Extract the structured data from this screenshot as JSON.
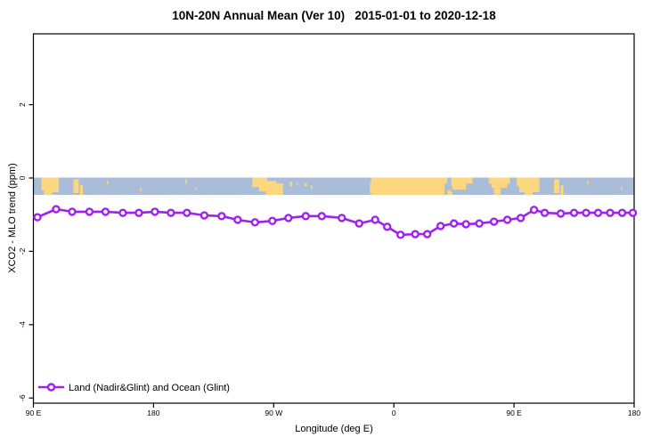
{
  "chart_data": {
    "type": "line",
    "title": "10N-20N Annual Mean (Ver 10)   2015-01-01 to 2020-12-18",
    "xlabel": "Longitude (deg E)",
    "ylabel": "XCO2 - MLO trend (ppm)",
    "grid": false,
    "x_axis": {
      "range_deg": [
        -270,
        180
      ],
      "tick_lons": [
        -270,
        -180,
        -90,
        0,
        90,
        180
      ],
      "tick_labels": [
        "90 E",
        "180",
        "90 W",
        "0",
        "90 E",
        "180"
      ]
    },
    "y_axis": {
      "range": [
        -6.1,
        3.9
      ],
      "tick_values": [
        2,
        0,
        -2,
        -4,
        -6
      ],
      "tick_labels": [
        "2",
        "0",
        "-2",
        "-4",
        "-6"
      ]
    },
    "series": [
      {
        "name": "Land (Nadir&Glint) and Ocean (Glint)",
        "color": "#A020F0",
        "marker": "open-circle",
        "points": [
          [
            -267,
            -1.07
          ],
          [
            -253,
            -0.85
          ],
          [
            -241,
            -0.92
          ],
          [
            -228,
            -0.92
          ],
          [
            -216,
            -0.92
          ],
          [
            -203,
            -0.95
          ],
          [
            -191,
            -0.95
          ],
          [
            -179,
            -0.92
          ],
          [
            -167,
            -0.95
          ],
          [
            -155,
            -0.95
          ],
          [
            -142,
            -1.02
          ],
          [
            -129,
            -1.04
          ],
          [
            -117,
            -1.14
          ],
          [
            -104,
            -1.21
          ],
          [
            -91,
            -1.17
          ],
          [
            -79,
            -1.09
          ],
          [
            -66,
            -1.04
          ],
          [
            -54,
            -1.04
          ],
          [
            -39,
            -1.09
          ],
          [
            -26,
            -1.24
          ],
          [
            -14,
            -1.14
          ],
          [
            -5,
            -1.33
          ],
          [
            5,
            -1.55
          ],
          [
            16,
            -1.53
          ],
          [
            25,
            -1.53
          ],
          [
            35,
            -1.31
          ],
          [
            45,
            -1.24
          ],
          [
            54,
            -1.26
          ],
          [
            64,
            -1.24
          ],
          [
            75,
            -1.19
          ],
          [
            85,
            -1.14
          ],
          [
            95,
            -1.09
          ],
          [
            105,
            -0.87
          ],
          [
            113,
            -0.95
          ],
          [
            125,
            -0.97
          ],
          [
            135,
            -0.95
          ],
          [
            144,
            -0.95
          ],
          [
            153,
            -0.95
          ],
          [
            162,
            -0.95
          ],
          [
            171,
            -0.95
          ],
          [
            179,
            -0.95
          ]
        ]
      }
    ],
    "map_strip": {
      "description": "10N-20N latitude band of world map drawn along the 0 ppm line",
      "value_top": 0,
      "value_bottom": -0.46,
      "ocean_color": "#A9BCD8",
      "land_color": "#FDD77E",
      "land_segments": [
        [
          -264,
          -259,
          0,
          0.75
        ],
        [
          -262,
          -256,
          0,
          1
        ],
        [
          -256,
          -251,
          0,
          0.85
        ],
        [
          -259,
          -257,
          0.55,
          1
        ],
        [
          -240,
          -236,
          0.1,
          0.9
        ],
        [
          -235,
          -233,
          0.45,
          1
        ],
        [
          -215,
          -214,
          0.2,
          0.4
        ],
        [
          -190,
          -189,
          0.6,
          0.8
        ],
        [
          -156,
          -155,
          0.1,
          0.35
        ],
        [
          -149,
          -148,
          0.55,
          0.7
        ],
        [
          -106,
          -99,
          0,
          0.55
        ],
        [
          -101,
          -95,
          0,
          0.8
        ],
        [
          -96,
          -88,
          0.2,
          1
        ],
        [
          -89,
          -83,
          0.35,
          1
        ],
        [
          -78,
          -76,
          0.25,
          0.5
        ],
        [
          -73,
          -72,
          0.3,
          0.45
        ],
        [
          -67,
          -65,
          0.35,
          0.5
        ],
        [
          -62,
          -61,
          0.45,
          0.65
        ],
        [
          -18,
          -17,
          0.3,
          0.9
        ],
        [
          -17,
          38,
          0,
          1
        ],
        [
          38,
          40,
          0,
          0.35
        ],
        [
          40,
          43,
          0.75,
          1
        ],
        [
          43,
          44,
          0.85,
          1
        ],
        [
          43,
          47,
          0,
          0.5
        ],
        [
          44,
          54,
          0,
          0.7
        ],
        [
          54,
          59,
          0,
          0.35
        ],
        [
          71,
          87,
          0,
          0.35
        ],
        [
          73,
          85,
          0.35,
          0.6
        ],
        [
          75,
          80,
          0.6,
          1
        ],
        [
          92,
          99,
          0,
          0.5
        ],
        [
          94,
          98,
          0.5,
          0.85
        ],
        [
          98,
          104,
          0,
          1
        ],
        [
          104,
          109,
          0,
          0.85
        ],
        [
          101,
          103,
          0.55,
          1
        ],
        [
          120,
          124,
          0.1,
          0.9
        ],
        [
          125,
          127,
          0.45,
          1
        ],
        [
          145,
          146,
          0.2,
          0.4
        ],
        [
          170,
          171,
          0.55,
          0.7
        ]
      ]
    },
    "frame_color": "#000000",
    "background_color": "#ffffff"
  },
  "legend": {
    "label": "Land (Nadir&Glint) and Ocean (Glint)",
    "position": "bottom-left-inside"
  }
}
